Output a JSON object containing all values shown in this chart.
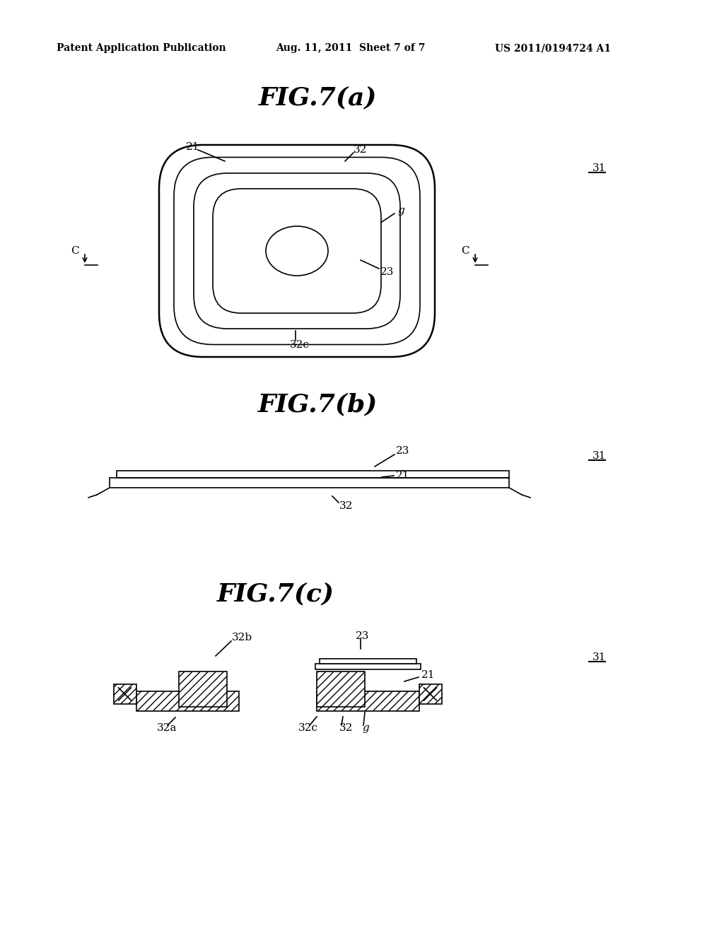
{
  "bg_color": "#ffffff",
  "header_left": "Patent Application Publication",
  "header_mid": "Aug. 11, 2011  Sheet 7 of 7",
  "header_right": "US 2011/0194724 A1",
  "fig7a_title": "FIG.7(a)",
  "fig7b_title": "FIG.7(b)",
  "fig7c_title": "FIG.7(c)",
  "line_color": "#000000"
}
